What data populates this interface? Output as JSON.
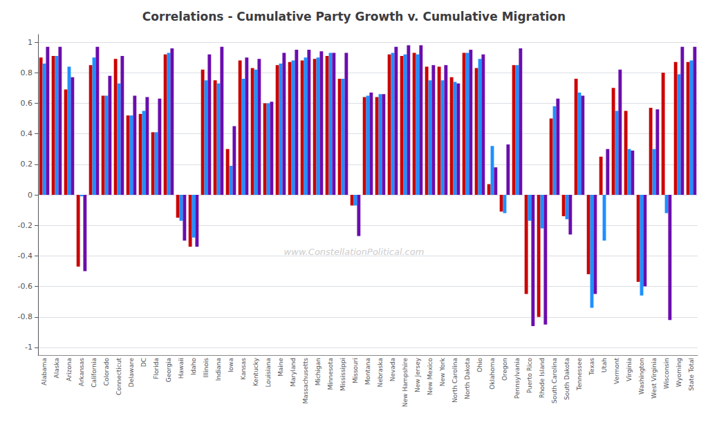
{
  "chart_data": {
    "type": "bar",
    "title": "Correlations - Cumulative Party Growth v. Cumulative Migration",
    "annotations": [
      "www.ConstellationPolitical.com"
    ],
    "categories": [
      "Alabama",
      "Alaska",
      "Arizona",
      "Arkansas",
      "California",
      "Colorado",
      "Connecticut",
      "Delaware",
      "DC",
      "Florida",
      "Georgia",
      "Hawaii",
      "Idaho",
      "Illinois",
      "Indiana",
      "Iowa",
      "Kansas",
      "Kentucky",
      "Louisiana",
      "Maine",
      "Maryland",
      "Massachusetts",
      "Michigan",
      "Minnesota",
      "Mississippi",
      "Missouri",
      "Montana",
      "Nebraska",
      "Nevada",
      "New Hampshire",
      "New Jersey",
      "New Mexico",
      "New York",
      "North Carolina",
      "North Dakota",
      "Ohio",
      "Oklahoma",
      "Oregon",
      "Pennsylvania",
      "Puerto Rico",
      "Rhode Island",
      "South Carolina",
      "South Dakota",
      "Tennessee",
      "Texas",
      "Utah",
      "Vermont",
      "Virginia",
      "Washington",
      "West Virginia",
      "Wisconsin",
      "Wyoming",
      "State Total"
    ],
    "series": [
      {
        "color": "#CC0000",
        "values": [
          0.9,
          0.91,
          0.69,
          -0.47,
          0.85,
          0.65,
          0.89,
          0.52,
          0.53,
          0.41,
          0.92,
          -0.15,
          -0.34,
          0.82,
          0.75,
          0.3,
          0.88,
          0.83,
          0.6,
          0.85,
          0.87,
          0.88,
          0.89,
          0.91,
          0.76,
          -0.07,
          0.64,
          0.64,
          0.92,
          0.91,
          0.93,
          0.84,
          0.84,
          0.77,
          0.93,
          0.83,
          0.07,
          -0.11,
          0.85,
          -0.65,
          -0.8,
          0.5,
          -0.14,
          0.76,
          -0.52,
          0.25,
          0.7,
          0.55,
          -0.57,
          0.57,
          0.8,
          0.87,
          0.87
        ]
      },
      {
        "color": "#1E90FF",
        "values": [
          0.86,
          0.91,
          0.84,
          -0.01,
          0.9,
          0.65,
          0.73,
          0.52,
          0.55,
          0.41,
          0.93,
          -0.17,
          -0.28,
          0.75,
          0.73,
          0.19,
          0.76,
          0.82,
          0.6,
          0.86,
          0.88,
          0.9,
          0.9,
          0.93,
          0.76,
          -0.07,
          0.65,
          0.66,
          0.93,
          0.92,
          0.92,
          0.75,
          0.75,
          0.74,
          0.93,
          0.89,
          0.32,
          -0.12,
          0.85,
          -0.17,
          -0.22,
          0.58,
          -0.16,
          0.67,
          -0.74,
          -0.3,
          0.55,
          0.3,
          -0.66,
          0.3,
          -0.12,
          0.79,
          0.88
        ]
      },
      {
        "color": "#6A0DAD",
        "values": [
          0.97,
          0.97,
          0.77,
          -0.5,
          0.97,
          0.78,
          0.91,
          0.65,
          0.64,
          0.63,
          0.96,
          -0.3,
          -0.34,
          0.92,
          0.97,
          0.45,
          0.9,
          0.89,
          0.61,
          0.93,
          0.95,
          0.95,
          0.94,
          0.93,
          0.93,
          -0.27,
          0.67,
          0.66,
          0.97,
          0.98,
          0.98,
          0.85,
          0.85,
          0.73,
          0.95,
          0.92,
          0.18,
          0.33,
          0.96,
          -0.86,
          -0.85,
          0.63,
          -0.26,
          0.65,
          -0.65,
          0.3,
          0.82,
          0.29,
          -0.6,
          0.56,
          -0.82,
          0.97,
          0.97
        ]
      }
    ],
    "ylim": [
      -1.05,
      1.05
    ],
    "yticks": [
      -1,
      -0.8,
      -0.6,
      -0.4,
      -0.2,
      0,
      0.2,
      0.4,
      0.6,
      0.8,
      1
    ],
    "grid": true
  }
}
